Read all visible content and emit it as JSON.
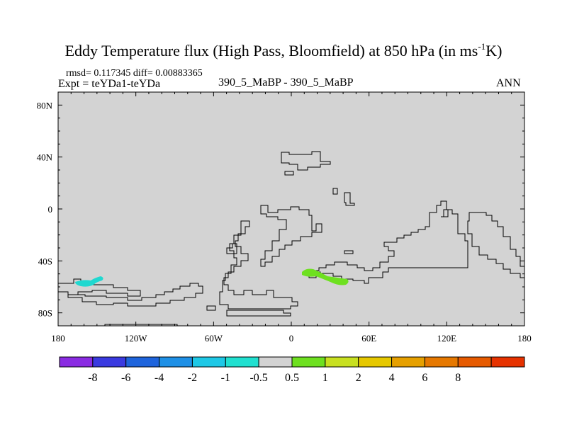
{
  "title": {
    "text_before": "Eddy Temperature flux (High Pass, Bloomfield) at 850 hPa (in ms",
    "superscript": "-1",
    "text_after": "K)"
  },
  "subtitle": {
    "stats": "rmsd= 0.117345 diff= 0.00883365",
    "experiment": "Expt = teYDa1-teYDa",
    "case": "390_5_MaBP - 390_5_MaBP",
    "season": "ANN"
  },
  "map": {
    "background_color": "#d3d3d3",
    "lat_labels": [
      "80N",
      "40N",
      "0",
      "40S",
      "80S"
    ],
    "lon_labels": [
      "180",
      "120W",
      "60W",
      "0",
      "60E",
      "120E",
      "180"
    ]
  },
  "colorbar": {
    "colors": [
      "#8a2be2",
      "#3a3ae0",
      "#1e64dc",
      "#1e90e6",
      "#1ec8e6",
      "#20e0d0",
      "#d3d3d3",
      "#6ee020",
      "#c8e020",
      "#e6c800",
      "#e6a000",
      "#e67800",
      "#e65a00",
      "#e63200"
    ],
    "labels": [
      "-8",
      "-6",
      "-4",
      "-2",
      "-1",
      "-0.5",
      "0.5",
      "1",
      "2",
      "4",
      "6",
      "8"
    ]
  }
}
